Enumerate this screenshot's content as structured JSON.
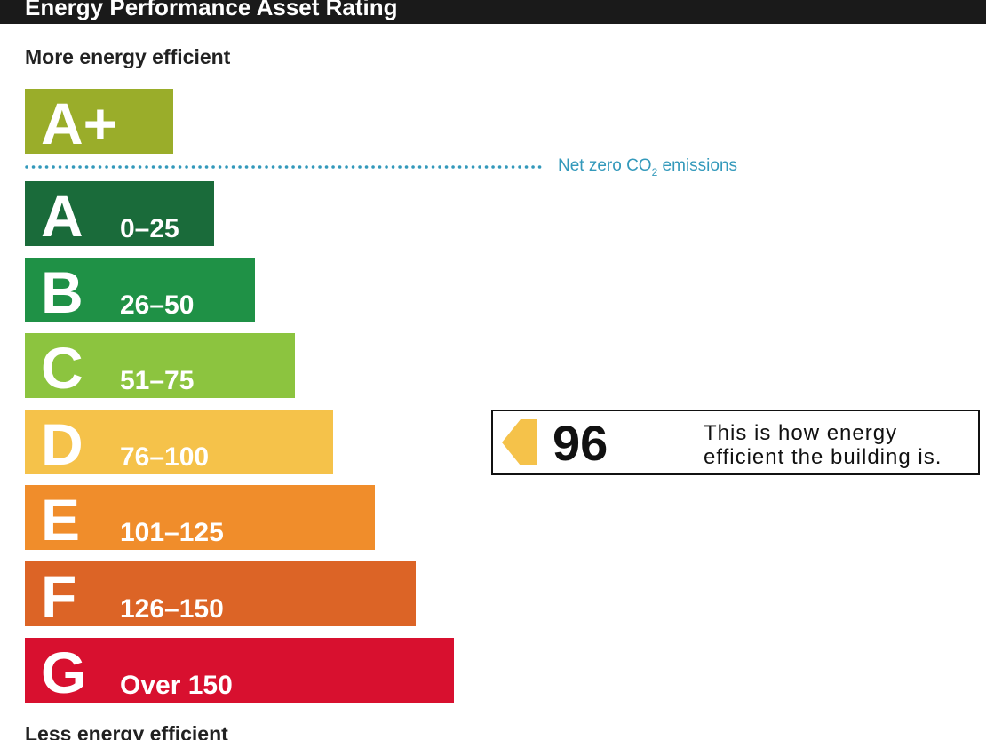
{
  "header": {
    "title": "Energy Performance Asset Rating"
  },
  "top_label": "More energy efficient",
  "bottom_label": "Less energy efficient",
  "net_zero": {
    "text": "Net zero CO",
    "subscript": "2",
    "suffix": " emissions",
    "color": "#3399bb"
  },
  "bands": [
    {
      "letter": "A+",
      "range": null,
      "color": "#9aad2a"
    },
    {
      "letter": "A",
      "range": "0–25",
      "color": "#1a6b3a"
    },
    {
      "letter": "B",
      "range": "26–50",
      "color": "#1f9146"
    },
    {
      "letter": "C",
      "range": "51–75",
      "color": "#8cc43f"
    },
    {
      "letter": "D",
      "range": "76–100",
      "color": "#f5c24a"
    },
    {
      "letter": "E",
      "range": "101–125",
      "color": "#f08d2b"
    },
    {
      "letter": "F",
      "range": "126–150",
      "color": "#dc6426"
    },
    {
      "letter": "G",
      "range": "Over 150",
      "color": "#d8102f"
    }
  ],
  "rating": {
    "value": 96,
    "color": "#f5c24a",
    "description": [
      "This is how energy",
      "efficient the building is."
    ]
  }
}
